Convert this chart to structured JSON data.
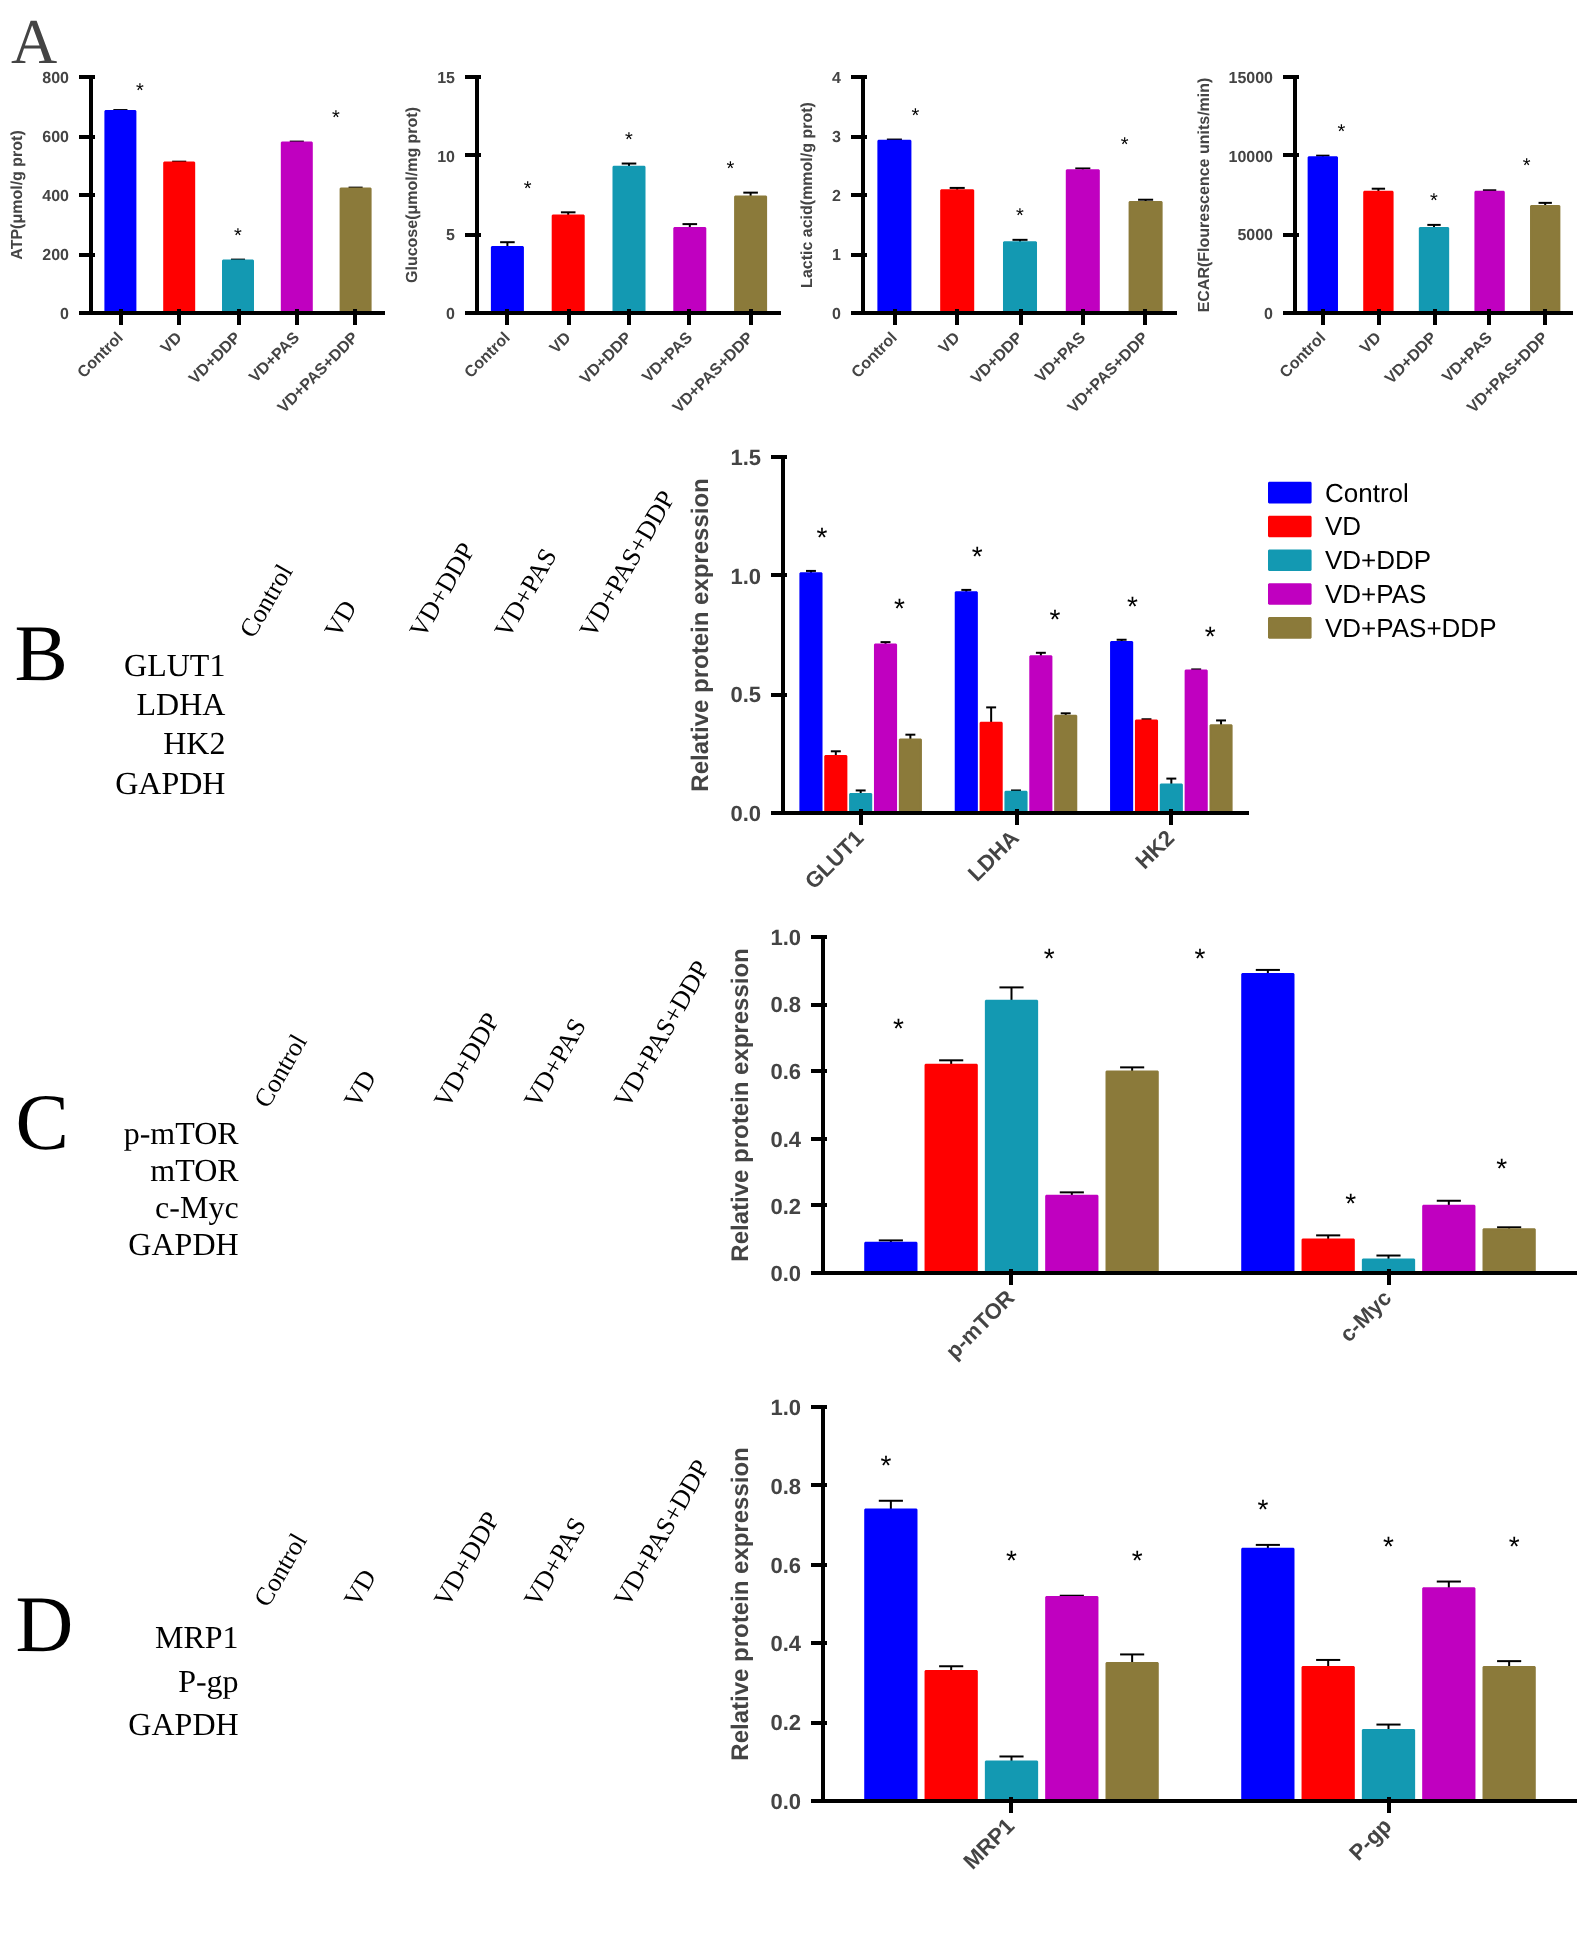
{
  "chart_data": [
    {
      "type": "bar",
      "title": "A",
      "ylabel": "ATP(μmol/g prot)",
      "categories": [
        "Control",
        "VD",
        "VD+DDP",
        "VD+PAS",
        "VD+PAS+DDP"
      ],
      "values": [
        685,
        510,
        178,
        578,
        422
      ],
      "errors": [
        3,
        3,
        3,
        3,
        3
      ],
      "colors": [
        "#0000ff",
        "#ff0000",
        "#1399b2",
        "#c000c0",
        "#8b7a3a"
      ],
      "ylim": [
        0,
        800
      ],
      "yticks": [
        0,
        200,
        400,
        600,
        800
      ],
      "annotations": [
        "*",
        "*",
        "*"
      ]
    },
    {
      "type": "bar",
      "ylabel": "Glucose(μmol/mg prot)",
      "categories": [
        "Control",
        "VD",
        "VD+DDP",
        "VD+PAS",
        "VD+PAS+DDP"
      ],
      "values": [
        4.2,
        6.2,
        9.3,
        5.4,
        7.4
      ],
      "errors": [
        0.3,
        0.2,
        0.2,
        0.25,
        0.25
      ],
      "colors": [
        "#0000ff",
        "#ff0000",
        "#1399b2",
        "#c000c0",
        "#8b7a3a"
      ],
      "ylim": [
        0,
        15
      ],
      "yticks": [
        0,
        5,
        10,
        15
      ],
      "annotations": [
        "*",
        "*",
        "*"
      ]
    },
    {
      "type": "bar",
      "ylabel": "Lactic acid(mmol/g prot)",
      "categories": [
        "Control",
        "VD",
        "VD+DDP",
        "VD+PAS",
        "VD+PAS+DDP"
      ],
      "values": [
        2.92,
        2.08,
        1.2,
        2.42,
        1.88
      ],
      "errors": [
        0.02,
        0.04,
        0.04,
        0.03,
        0.04
      ],
      "colors": [
        "#0000ff",
        "#ff0000",
        "#1399b2",
        "#c000c0",
        "#8b7a3a"
      ],
      "ylim": [
        0,
        4
      ],
      "yticks": [
        0,
        1,
        2,
        3,
        4
      ],
      "annotations": [
        "*",
        "*",
        "*"
      ]
    },
    {
      "type": "bar",
      "ylabel": "ECAR(Flourescence units/min)",
      "categories": [
        "Control",
        "VD",
        "VD+DDP",
        "VD+PAS",
        "VD+PAS+DDP"
      ],
      "values": [
        9900,
        7700,
        5400,
        7700,
        6800
      ],
      "errors": [
        100,
        200,
        200,
        100,
        200
      ],
      "colors": [
        "#0000ff",
        "#ff0000",
        "#1399b2",
        "#c000c0",
        "#8b7a3a"
      ],
      "ylim": [
        0,
        15000
      ],
      "yticks": [
        0,
        5000,
        10000,
        15000
      ],
      "annotations": [
        "*",
        "*",
        "*"
      ]
    },
    {
      "type": "other",
      "title": "B",
      "categories": [
        "Control",
        "VD",
        "VD+DDP",
        "VD+PAS",
        "VD+PAS+DDP"
      ],
      "annotations": [
        "GLUT1",
        "LDHA",
        "HK2",
        "GAPDH"
      ]
    },
    {
      "type": "bar",
      "ylabel": "Relative protein expression",
      "categories": [
        "GLUT1",
        "LDHA",
        "HK2"
      ],
      "ylim": [
        0,
        1.5
      ],
      "yticks": [
        {
          "value": 0,
          "label": "0.0"
        },
        {
          "value": 0.5,
          "label": "0.5"
        },
        {
          "value": 1,
          "label": "1.0"
        },
        {
          "value": 1.5,
          "label": "1.5"
        }
      ],
      "legend": "right",
      "annotations": [
        "*",
        "*",
        "*",
        "*",
        "*",
        "*"
      ],
      "series": [
        {
          "name": "Control",
          "color": "#0000ff",
          "values": [
            1.01,
            0.93,
            0.72
          ],
          "errors": [
            0.01,
            0.01,
            0.01
          ]
        },
        {
          "name": "VD",
          "color": "#ff0000",
          "values": [
            0.24,
            0.38,
            0.39
          ],
          "errors": [
            0.02,
            0.065,
            0.005
          ]
        },
        {
          "name": "VD+DDP",
          "color": "#1399b2",
          "values": [
            0.08,
            0.09,
            0.12
          ],
          "errors": [
            0.015,
            0.005,
            0.025
          ]
        },
        {
          "name": "VD+PAS",
          "color": "#c000c0",
          "values": [
            0.71,
            0.66,
            0.6
          ],
          "errors": [
            0.01,
            0.015,
            0.005
          ]
        },
        {
          "name": "VD+PAS+DDP",
          "color": "#8b7a3a",
          "values": [
            0.31,
            0.41,
            0.37
          ],
          "errors": [
            0.02,
            0.01,
            0.02
          ]
        }
      ]
    },
    {
      "type": "other",
      "title": "C",
      "categories": [
        "Control",
        "VD",
        "VD+DDP",
        "VD+PAS",
        "VD+PAS+DDP"
      ],
      "annotations": [
        "p-mTOR",
        "mTOR",
        "c-Myc",
        "GAPDH"
      ]
    },
    {
      "type": "bar",
      "ylabel": "Relative protein expression",
      "categories": [
        "p-mTOR",
        "c-Myc"
      ],
      "ylim": [
        0,
        1.0
      ],
      "yticks": [
        {
          "value": 0,
          "label": "0.0"
        },
        {
          "value": 0.2,
          "label": "0.2"
        },
        {
          "value": 0.4,
          "label": "0.4"
        },
        {
          "value": 0.6,
          "label": "0.6"
        },
        {
          "value": 0.8,
          "label": "0.8"
        },
        {
          "value": 1.0,
          "label": "1.0"
        }
      ],
      "annotations": [
        "*",
        "*",
        "*",
        "*",
        "*"
      ],
      "series": [
        {
          "color": "#0000ff",
          "values": [
            0.09,
            0.89
          ],
          "errors": [
            0.007,
            0.012
          ]
        },
        {
          "color": "#ff0000",
          "values": [
            0.62,
            0.1
          ],
          "errors": [
            0.013,
            0.012
          ]
        },
        {
          "color": "#1399b2",
          "values": [
            0.81,
            0.04
          ],
          "errors": [
            0.04,
            0.012
          ]
        },
        {
          "color": "#c000c0",
          "values": [
            0.23,
            0.2
          ],
          "errors": [
            0.01,
            0.015
          ]
        },
        {
          "color": "#8b7a3a",
          "values": [
            0.6,
            0.13
          ],
          "errors": [
            0.012,
            0.006
          ]
        }
      ]
    },
    {
      "type": "other",
      "title": "D",
      "categories": [
        "Control",
        "VD",
        "VD+DDP",
        "VD+PAS",
        "VD+PAS+DDP"
      ],
      "annotations": [
        "MRP1",
        "P-gp",
        "GAPDH"
      ]
    },
    {
      "type": "bar",
      "ylabel": "Relative protein expression",
      "categories": [
        "MRP1",
        "P-gp"
      ],
      "ylim": [
        0,
        1.0
      ],
      "yticks": [
        {
          "value": 0,
          "label": "0.0"
        },
        {
          "value": 0.2,
          "label": "0.2"
        },
        {
          "value": 0.4,
          "label": "0.4"
        },
        {
          "value": 0.6,
          "label": "0.6"
        },
        {
          "value": 0.8,
          "label": "0.8"
        },
        {
          "value": 1.0,
          "label": "1.0"
        }
      ],
      "annotations": [
        "*",
        "*",
        "*",
        "*",
        "*",
        "*"
      ],
      "series": [
        {
          "color": "#0000ff",
          "values": [
            0.74,
            0.64
          ],
          "errors": [
            0.022,
            0.01
          ]
        },
        {
          "color": "#ff0000",
          "values": [
            0.33,
            0.34
          ],
          "errors": [
            0.012,
            0.018
          ]
        },
        {
          "color": "#1399b2",
          "values": [
            0.1,
            0.18
          ],
          "errors": [
            0.013,
            0.014
          ]
        },
        {
          "color": "#c000c0",
          "values": [
            0.518,
            0.54
          ],
          "errors": [
            0.003,
            0.017
          ]
        },
        {
          "color": "#8b7a3a",
          "values": [
            0.35,
            0.34
          ],
          "errors": [
            0.022,
            0.015
          ]
        }
      ]
    }
  ]
}
